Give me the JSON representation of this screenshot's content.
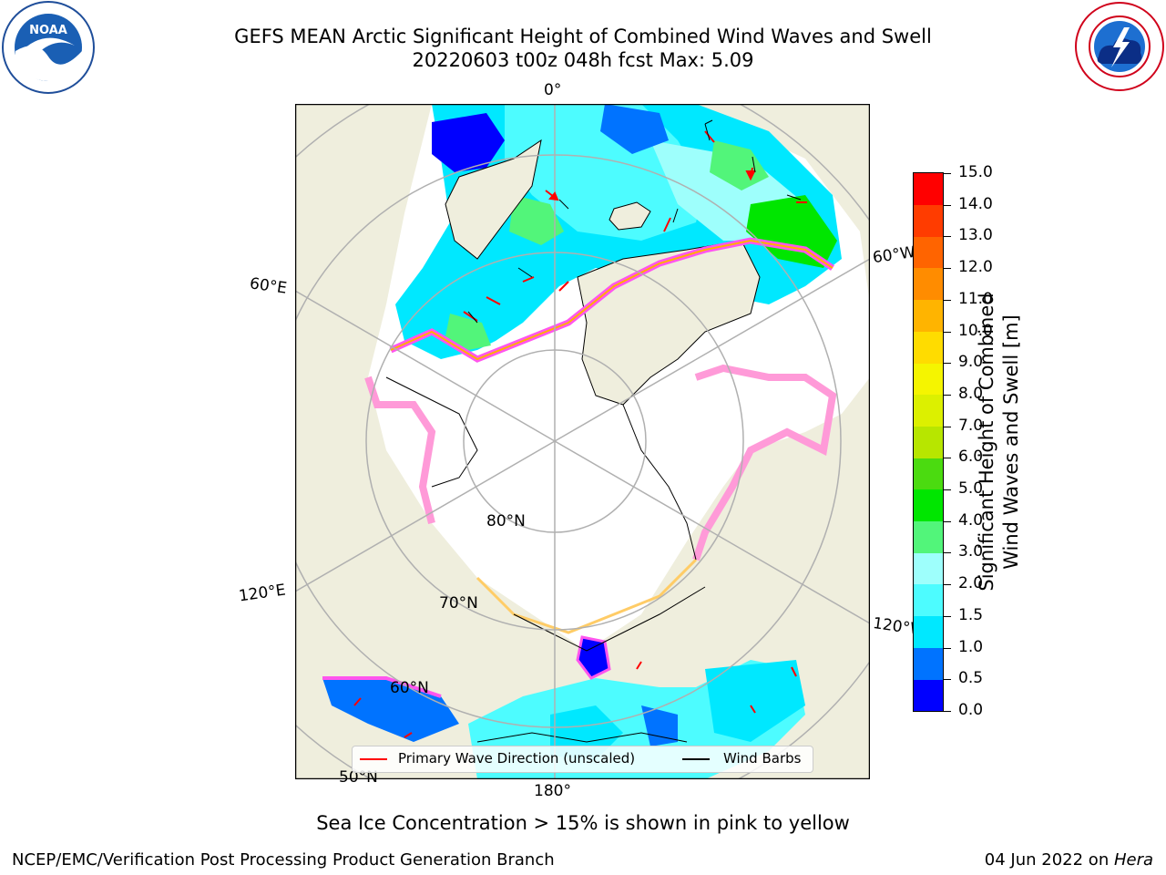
{
  "title_line1": "GEFS MEAN Arctic Significant Height of Combined Wind Waves and Swell",
  "title_line2": "20220603 t00z 048h fcst   Max: 5.09",
  "logos": {
    "left": "noaa-logo",
    "right": "national-weather-service-logo"
  },
  "map": {
    "longitude_labels": [
      "0°",
      "60°W",
      "120°W",
      "180°",
      "120°E",
      "60°E"
    ],
    "latitude_labels": [
      "80°N",
      "70°N",
      "60°N",
      "50°N"
    ],
    "colors": {
      "land": "#efeedd",
      "ice_free_ocean": "#ffffff",
      "grid": "#b0b0b0"
    }
  },
  "legend": {
    "wave_direction": "Primary Wave Direction (unscaled)",
    "wind_barbs": "Wind Barbs",
    "wave_direction_color": "#ff0000",
    "wind_barb_color": "#000000"
  },
  "colorbar": {
    "label_line1": "Significant Height of Combined",
    "label_line2": "Wind Waves and Swell [m]",
    "ticks": [
      "0.0",
      "0.5",
      "1.0",
      "1.5",
      "2.0",
      "3.0",
      "4.0",
      "5.0",
      "6.0",
      "7.0",
      "8.0",
      "9.0",
      "10.0",
      "11.0",
      "12.0",
      "13.0",
      "14.0",
      "15.0"
    ],
    "colors": [
      "#0000ff",
      "#0073ff",
      "#00e8ff",
      "#4dfcff",
      "#9efffc",
      "#52f57a",
      "#00e600",
      "#4bdb10",
      "#b7e600",
      "#dcf000",
      "#f5f500",
      "#ffdc00",
      "#ffb400",
      "#ff8c00",
      "#ff6400",
      "#ff3c00",
      "#ff0000"
    ]
  },
  "subtitle": "Sea Ice Concentration > 15% is shown in pink to yellow",
  "footer_left": "NCEP/EMC/Verification Post Processing Product Generation Branch",
  "footer_right_date": "04 Jun 2022 on ",
  "footer_right_host": "Hera"
}
